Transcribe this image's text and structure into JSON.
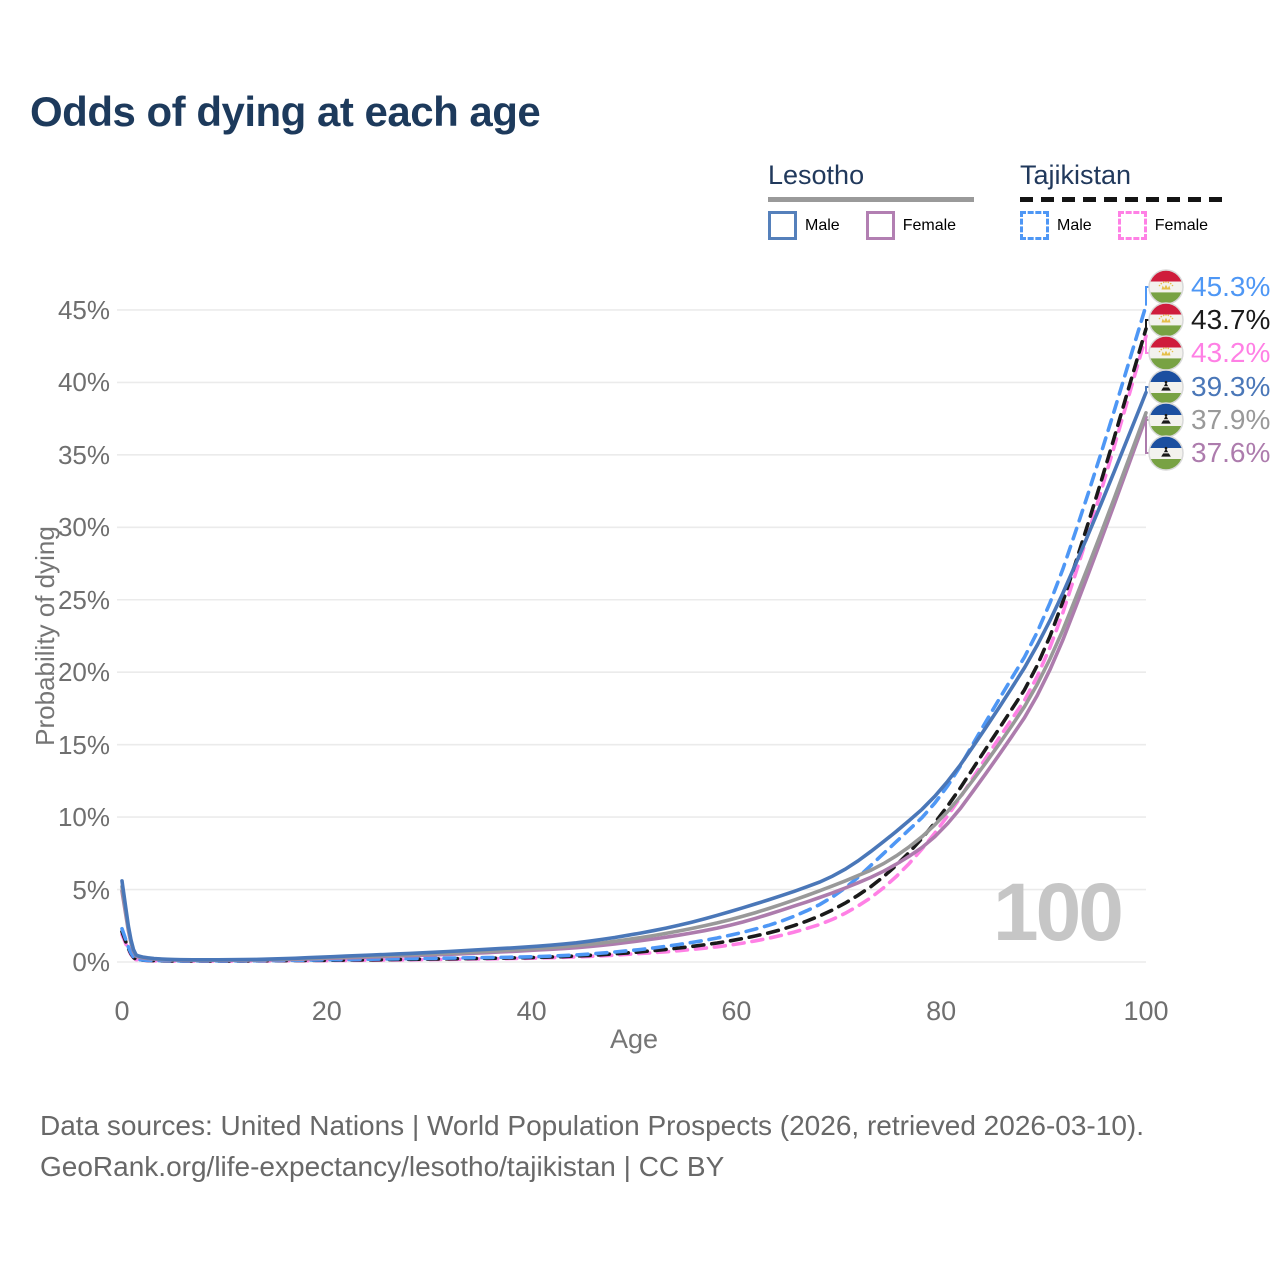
{
  "title": "Odds of dying at each age",
  "watermark_age": "100",
  "legend": {
    "groups": [
      {
        "name": "Lesotho",
        "line_style": "solid",
        "underline_color": "#9a9a9a",
        "items": [
          {
            "label": "Male",
            "color": "#5580bb",
            "dashed": false
          },
          {
            "label": "Female",
            "color": "#b27fb2",
            "dashed": false
          }
        ]
      },
      {
        "name": "Tajikistan",
        "line_style": "dashed",
        "underline_color": "#141414",
        "items": [
          {
            "label": "Male",
            "color": "#4e97f5",
            "dashed": true
          },
          {
            "label": "Female",
            "color": "#ff80e5",
            "dashed": true
          }
        ]
      }
    ]
  },
  "chart_data": {
    "type": "line",
    "title": "Odds of dying at each age",
    "xlabel": "Age",
    "ylabel": "Probability of dying",
    "xlim": [
      0,
      100
    ],
    "ylim_pct": [
      0,
      47
    ],
    "x_ticks": [
      0,
      20,
      40,
      60,
      80,
      100
    ],
    "y_ticks_pct": [
      0,
      5,
      10,
      15,
      20,
      25,
      30,
      35,
      40,
      45
    ],
    "y_tick_labels": [
      "0%",
      "5%",
      "10%",
      "15%",
      "20%",
      "25%",
      "30%",
      "35%",
      "40%",
      "45%"
    ],
    "grid": "horizontal-only",
    "legend_position": "top-right",
    "ages": [
      0,
      1,
      2,
      5,
      10,
      15,
      20,
      25,
      30,
      35,
      40,
      45,
      50,
      55,
      60,
      65,
      70,
      75,
      80,
      85,
      90,
      95,
      100
    ],
    "series": [
      {
        "name": "Tajikistan Female",
        "country": "Tajikistan",
        "sex": "female",
        "color": "#ff80e5",
        "dashed": true,
        "values_pct": [
          1.9,
          0.2,
          0.1,
          0.06,
          0.06,
          0.08,
          0.1,
          0.13,
          0.17,
          0.21,
          0.26,
          0.36,
          0.55,
          0.8,
          1.2,
          1.9,
          3.0,
          5.3,
          9.3,
          14.8,
          20.0,
          30.9,
          43.2
        ],
        "end_label": "43.2%"
      },
      {
        "name": "Tajikistan Both sexes",
        "country": "Tajikistan",
        "sex": "both",
        "color": "#1a1a1a",
        "dashed": true,
        "values_pct": [
          2.1,
          0.22,
          0.11,
          0.07,
          0.07,
          0.09,
          0.12,
          0.16,
          0.2,
          0.25,
          0.3,
          0.42,
          0.65,
          1.0,
          1.5,
          2.3,
          3.7,
          6.1,
          10.0,
          15.4,
          20.8,
          31.6,
          43.7
        ],
        "end_label": "43.7%"
      },
      {
        "name": "Tajikistan Male",
        "country": "Tajikistan",
        "sex": "male",
        "color": "#4e97f5",
        "dashed": true,
        "values_pct": [
          2.3,
          0.25,
          0.12,
          0.08,
          0.08,
          0.1,
          0.15,
          0.2,
          0.25,
          0.3,
          0.35,
          0.5,
          0.8,
          1.25,
          1.9,
          2.9,
          4.6,
          7.9,
          11.2,
          17.4,
          23.2,
          33.6,
          45.3
        ],
        "end_label": "45.3%"
      },
      {
        "name": "Lesotho Female",
        "country": "Lesotho",
        "sex": "female",
        "color": "#ad7cad",
        "dashed": false,
        "values_pct": [
          4.9,
          0.5,
          0.25,
          0.12,
          0.12,
          0.15,
          0.25,
          0.36,
          0.48,
          0.62,
          0.8,
          1.0,
          1.4,
          1.9,
          2.6,
          3.7,
          4.9,
          6.4,
          8.8,
          13.6,
          18.8,
          27.9,
          37.6
        ],
        "end_label": "37.6%"
      },
      {
        "name": "Lesotho Both sexes",
        "country": "Lesotho",
        "sex": "both",
        "color": "#999999",
        "dashed": false,
        "values_pct": [
          5.2,
          0.55,
          0.28,
          0.13,
          0.13,
          0.17,
          0.3,
          0.42,
          0.55,
          0.7,
          0.9,
          1.15,
          1.6,
          2.2,
          3.0,
          4.1,
          5.4,
          6.9,
          9.7,
          14.3,
          19.6,
          28.4,
          37.9
        ],
        "end_label": "37.9%"
      },
      {
        "name": "Lesotho Male",
        "country": "Lesotho",
        "sex": "male",
        "color": "#4a77b8",
        "dashed": false,
        "values_pct": [
          5.6,
          0.6,
          0.3,
          0.15,
          0.15,
          0.2,
          0.35,
          0.5,
          0.65,
          0.85,
          1.05,
          1.35,
          1.9,
          2.6,
          3.6,
          4.7,
          6.0,
          8.6,
          11.7,
          16.8,
          22.4,
          30.5,
          39.3
        ],
        "end_label": "39.3%"
      }
    ],
    "end_labels": [
      {
        "text": "45.3%",
        "color": "#4e97f5",
        "flag": "tajikistan",
        "series": "Tajikistan Male"
      },
      {
        "text": "43.7%",
        "color": "#1a1a1a",
        "flag": "tajikistan",
        "series": "Tajikistan Both sexes"
      },
      {
        "text": "43.2%",
        "color": "#ff80e5",
        "flag": "tajikistan",
        "series": "Tajikistan Female"
      },
      {
        "text": "39.3%",
        "color": "#4a77b8",
        "flag": "lesotho",
        "series": "Lesotho Male"
      },
      {
        "text": "37.9%",
        "color": "#999999",
        "flag": "lesotho",
        "series": "Lesotho Both sexes"
      },
      {
        "text": "37.6%",
        "color": "#ad7cad",
        "flag": "lesotho",
        "series": "Lesotho Female"
      }
    ]
  },
  "footer": {
    "line1": "Data sources: United Nations | World Population Prospects (2026, retrieved 2026-03-10).",
    "line2": "GeoRank.org/life-expectancy/lesotho/tajikistan | CC BY"
  },
  "colors": {
    "title": "#1d3a5c",
    "axis_text": "#6f6f6f",
    "gridline": "#ebebeb",
    "watermark": "#c6c6c6",
    "footer_text": "#686868",
    "legend_text": "#21395c"
  }
}
